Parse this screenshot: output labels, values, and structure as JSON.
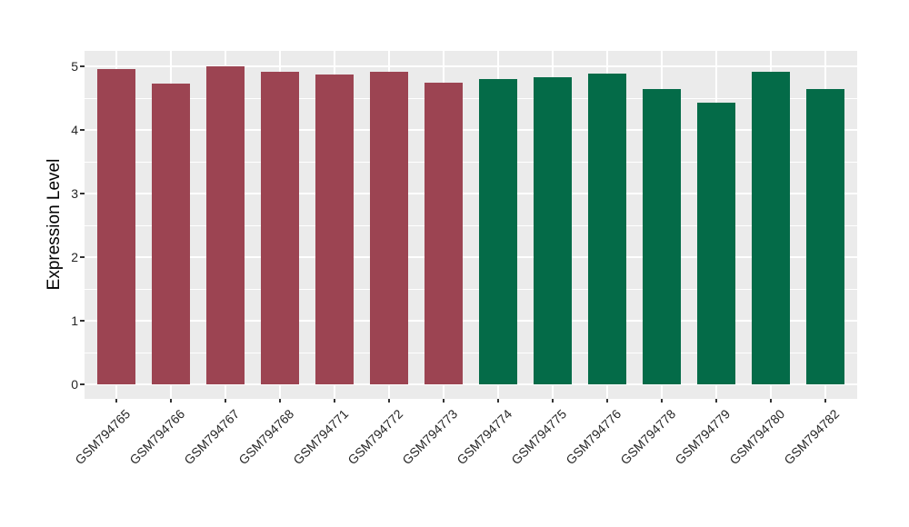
{
  "chart_data": {
    "type": "bar",
    "title": "",
    "xlabel": "",
    "ylabel": "Expression Level",
    "categories": [
      "GSM794765",
      "GSM794766",
      "GSM794767",
      "GSM794768",
      "GSM794771",
      "GSM794772",
      "GSM794773",
      "GSM794774",
      "GSM794775",
      "GSM794776",
      "GSM794778",
      "GSM794779",
      "GSM794780",
      "GSM794782"
    ],
    "values": [
      4.96,
      4.73,
      5.0,
      4.91,
      4.87,
      4.91,
      4.75,
      4.8,
      4.83,
      4.89,
      4.64,
      4.43,
      4.91,
      4.64
    ],
    "groups": [
      "group1",
      "group1",
      "group1",
      "group1",
      "group1",
      "group1",
      "group1",
      "group2",
      "group2",
      "group2",
      "group2",
      "group2",
      "group2",
      "group2"
    ],
    "group_colors": {
      "group1": "#9C4452",
      "group2": "#046B48"
    },
    "yticks": [
      0,
      1,
      2,
      3,
      4,
      5
    ],
    "ylim": [
      -0.25,
      5.25
    ],
    "grid": "major-and-minor",
    "legend": "none",
    "panel_bg": "#EBEBEB",
    "grid_color": "#FFFFFF",
    "tick_color": "#333333",
    "text_color": "#262626"
  }
}
